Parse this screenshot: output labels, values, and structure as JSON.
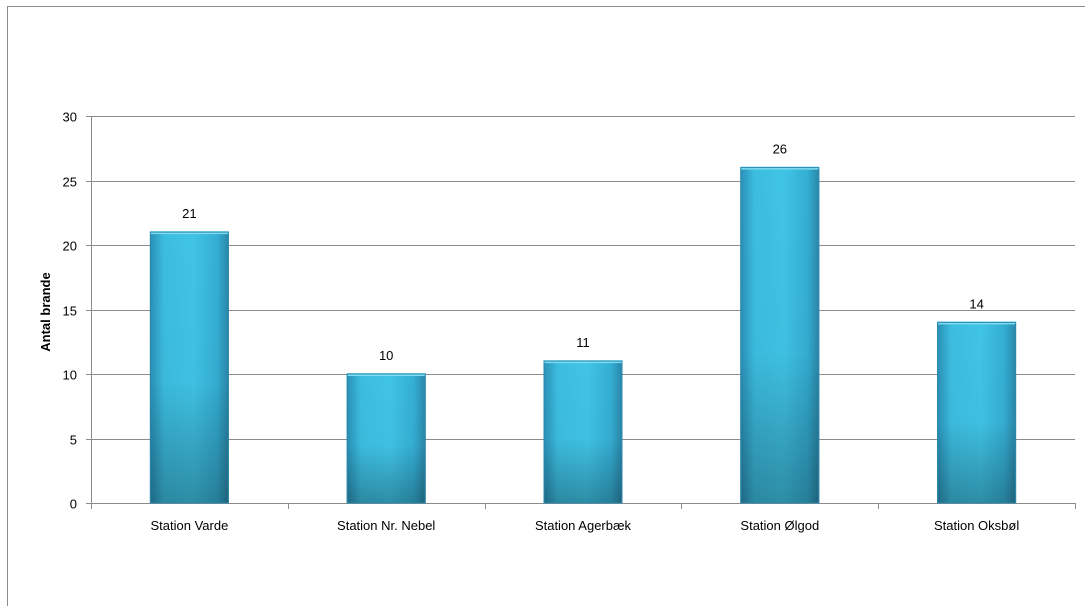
{
  "chart_data": {
    "type": "bar",
    "title": "",
    "xlabel": "",
    "ylabel": "Antal brande",
    "categories": [
      "Station Varde",
      "Station Nr. Nebel",
      "Station Agerbæk",
      "Station Ølgod",
      "Station Oksbøl"
    ],
    "values": [
      21,
      10,
      11,
      26,
      14
    ],
    "data_labels": [
      "21",
      "10",
      "11",
      "26",
      "14"
    ],
    "ylim": [
      0,
      30
    ],
    "yticks": [
      0,
      5,
      10,
      15,
      20,
      25,
      30
    ],
    "grid": true,
    "legend": "none",
    "colors": {
      "bar_light": "#40c4e6",
      "bar_mid": "#2fb0d6",
      "bar_dark": "#2a7fa0",
      "bar_top": "#7fdcf2",
      "grid": "#8c8c8c"
    }
  }
}
